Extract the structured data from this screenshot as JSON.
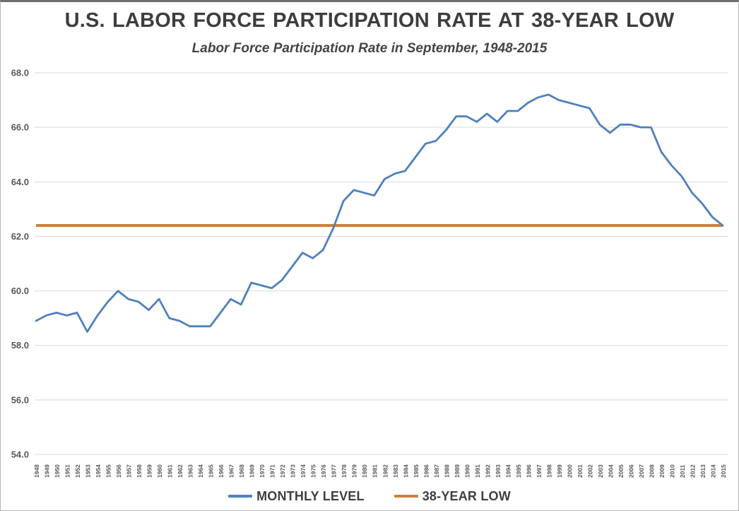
{
  "page": {
    "title": "U.S. LABOR FORCE PARTICIPATION RATE AT 38-YEAR LOW",
    "subtitle": "Labor Force Participation Rate in September, 1948-2015"
  },
  "legend": {
    "items": [
      {
        "label": "MONTHLY LEVEL",
        "color": "#4E81BC"
      },
      {
        "label": "38-YEAR LOW",
        "color": "#CC8038"
      }
    ]
  },
  "colors": {
    "monthly_level_line": "#4E81BC",
    "low_reference_line": "#CC8038",
    "gridline": "#D9D9D9",
    "axis_text": "#595959",
    "title_text": "#3D3D3D"
  },
  "chart_data": {
    "type": "line",
    "title": "U.S. LABOR FORCE PARTICIPATION RATE AT 38-YEAR LOW",
    "subtitle": "Labor Force Participation Rate in September, 1948-2015",
    "xlabel": "",
    "ylabel": "",
    "x": [
      1948,
      1949,
      1950,
      1951,
      1952,
      1953,
      1954,
      1955,
      1956,
      1957,
      1958,
      1959,
      1960,
      1961,
      1962,
      1963,
      1964,
      1965,
      1966,
      1967,
      1968,
      1969,
      1970,
      1971,
      1972,
      1973,
      1974,
      1975,
      1976,
      1977,
      1978,
      1979,
      1980,
      1981,
      1982,
      1983,
      1984,
      1985,
      1986,
      1987,
      1988,
      1989,
      1990,
      1991,
      1992,
      1993,
      1994,
      1995,
      1996,
      1997,
      1998,
      1999,
      2000,
      2001,
      2002,
      2003,
      2004,
      2005,
      2006,
      2007,
      2008,
      2009,
      2010,
      2011,
      2012,
      2013,
      2014,
      2015
    ],
    "series": [
      {
        "name": "MONTHLY LEVEL",
        "color": "#4E81BC",
        "values": [
          58.9,
          59.1,
          59.2,
          59.1,
          59.2,
          58.5,
          59.1,
          59.6,
          60.0,
          59.7,
          59.6,
          59.3,
          59.7,
          59.0,
          58.9,
          58.7,
          58.7,
          58.7,
          59.2,
          59.7,
          59.5,
          60.3,
          60.2,
          60.1,
          60.4,
          60.9,
          61.4,
          61.2,
          61.5,
          62.3,
          63.3,
          63.7,
          63.6,
          63.5,
          64.1,
          64.3,
          64.4,
          64.9,
          65.4,
          65.5,
          65.9,
          66.4,
          66.4,
          66.2,
          66.5,
          66.2,
          66.6,
          66.6,
          66.9,
          67.1,
          67.2,
          67.0,
          66.9,
          66.8,
          66.7,
          66.1,
          65.8,
          66.1,
          66.1,
          66.0,
          66.0,
          65.1,
          64.6,
          64.2,
          63.6,
          63.2,
          62.7,
          62.4
        ]
      },
      {
        "name": "38-YEAR LOW",
        "color": "#CC8038",
        "constant_value": 62.4
      }
    ],
    "ylim": [
      54.0,
      68.0
    ],
    "ytick_step": 2.0,
    "ytick_decimals": 1,
    "grid": true,
    "legend_position": "bottom"
  }
}
